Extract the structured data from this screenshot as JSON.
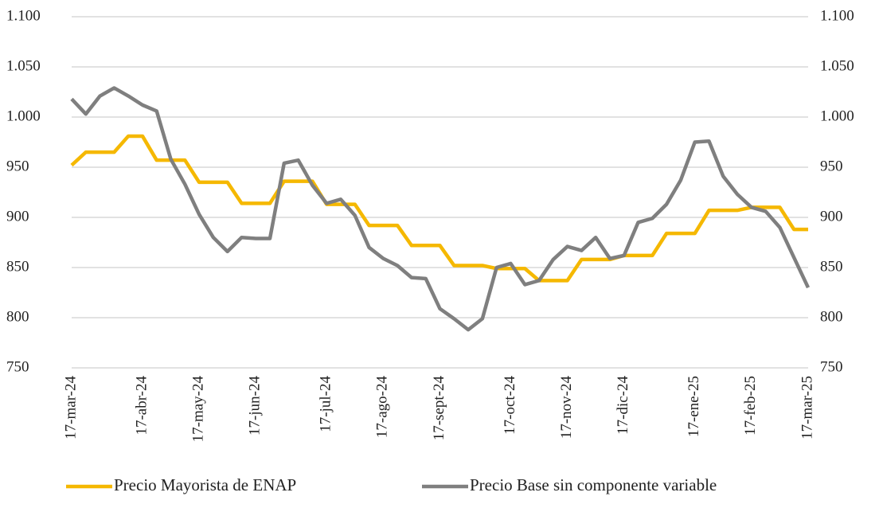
{
  "chart_data": {
    "type": "line",
    "categories": [
      "17-mar-24",
      null,
      null,
      null,
      null,
      "17-abr-24",
      null,
      null,
      null,
      "17-may-24",
      null,
      null,
      null,
      "17-jun-24",
      null,
      null,
      null,
      null,
      "17-jul-24",
      null,
      null,
      null,
      "17-ago-24",
      null,
      null,
      null,
      "17-sept-24",
      null,
      null,
      null,
      null,
      "17-oct-24",
      null,
      null,
      null,
      "17-nov-24",
      null,
      null,
      null,
      "17-dic-24",
      null,
      null,
      null,
      null,
      "17-ene-25",
      null,
      null,
      null,
      "17-feb-25",
      null,
      null,
      null,
      "17-mar-25"
    ],
    "series": [
      {
        "name": "Precio Mayorista de ENAP",
        "color": "#f5b800",
        "values": [
          952,
          965,
          965,
          965,
          981,
          981,
          957,
          957,
          957,
          935,
          935,
          935,
          914,
          914,
          914,
          936,
          936,
          936,
          913,
          913,
          913,
          892,
          892,
          892,
          872,
          872,
          872,
          852,
          852,
          852,
          849,
          849,
          849,
          837,
          837,
          837,
          858,
          858,
          858,
          862,
          862,
          862,
          884,
          884,
          884,
          907,
          907,
          907,
          910,
          910,
          910,
          888,
          888
        ]
      },
      {
        "name": "Precio Base sin componente variable",
        "color": "#7f7f7f",
        "values": [
          1018,
          1003,
          1021,
          1029,
          1021,
          1012,
          1006,
          958,
          933,
          903,
          880,
          866,
          880,
          879,
          879,
          954,
          957,
          932,
          914,
          918,
          902,
          870,
          859,
          852,
          840,
          839,
          809,
          799,
          788,
          799,
          850,
          854,
          833,
          837,
          858,
          871,
          867,
          880,
          859,
          862,
          895,
          899,
          913,
          937,
          975,
          976,
          941,
          923,
          910,
          906,
          890,
          860,
          830
        ]
      }
    ],
    "ylim": [
      750,
      1100
    ],
    "yticks": [
      750,
      800,
      850,
      900,
      950,
      {
        "value": 1000,
        "label": "1.000"
      },
      {
        "value": 1050,
        "label": "1.050"
      },
      {
        "value": 1100,
        "label": "1.100"
      }
    ],
    "grid": true,
    "legend": "bottom"
  }
}
